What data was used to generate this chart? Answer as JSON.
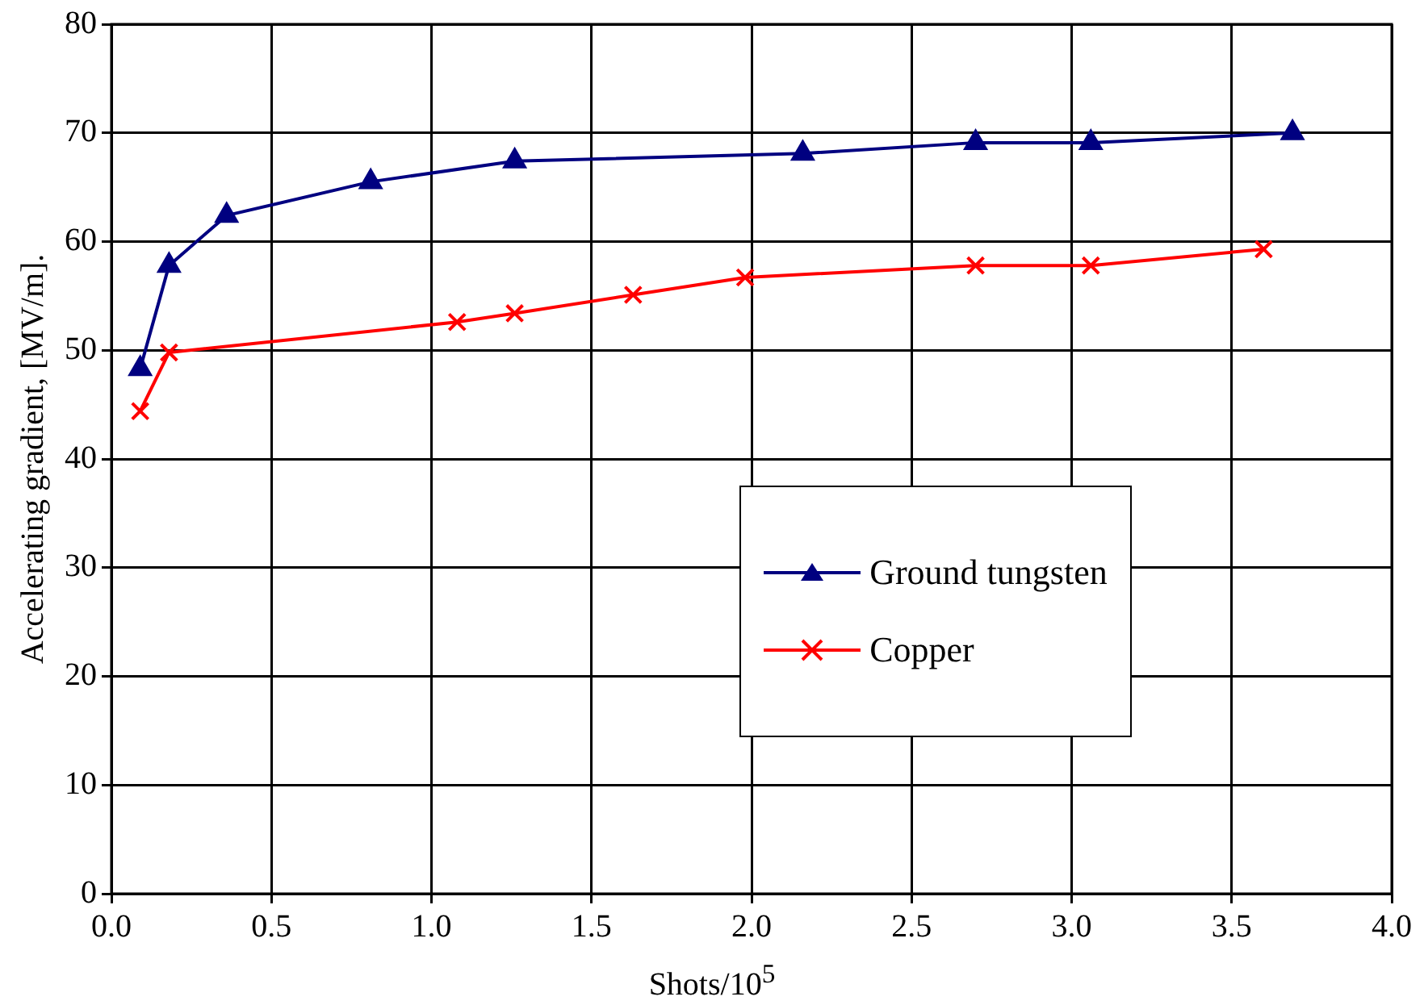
{
  "chart_data": {
    "type": "line",
    "xlabel": "Shots/10$^{5}$",
    "ylabel": "Accelerating gradient, [MV/m].",
    "xlim": [
      0,
      4
    ],
    "xticks": [
      {
        "value": 0,
        "label": "0.0"
      },
      0.5,
      {
        "value": 1,
        "label": "1.0"
      },
      1.5,
      {
        "value": 2,
        "label": "2.0"
      },
      2.5,
      {
        "value": 3,
        "label": "3.0"
      },
      3.5,
      {
        "value": 4,
        "label": "4.0"
      }
    ],
    "ylim": [
      0,
      80
    ],
    "yticks": [
      0,
      10,
      20,
      30,
      40,
      50,
      60,
      70,
      80
    ],
    "grid": true,
    "legend": "right",
    "series": [
      {
        "name": "Ground tungsten",
        "color": "#000080",
        "marker": "triangle",
        "x": [
          0.09,
          0.18,
          0.36,
          0.81,
          1.26,
          2.16,
          2.7,
          3.06,
          3.69
        ],
        "values": [
          48.3,
          57.8,
          62.4,
          65.5,
          67.4,
          68.1,
          69.1,
          69.1,
          70.0
        ]
      },
      {
        "name": "Copper",
        "color": "#ff0000",
        "marker": "cross",
        "x": [
          0.09,
          0.18,
          1.08,
          1.26,
          1.63,
          1.98,
          2.7,
          3.06,
          3.6
        ],
        "values": [
          44.4,
          49.8,
          52.6,
          53.4,
          55.1,
          56.7,
          57.8,
          57.8,
          59.3
        ]
      }
    ]
  }
}
